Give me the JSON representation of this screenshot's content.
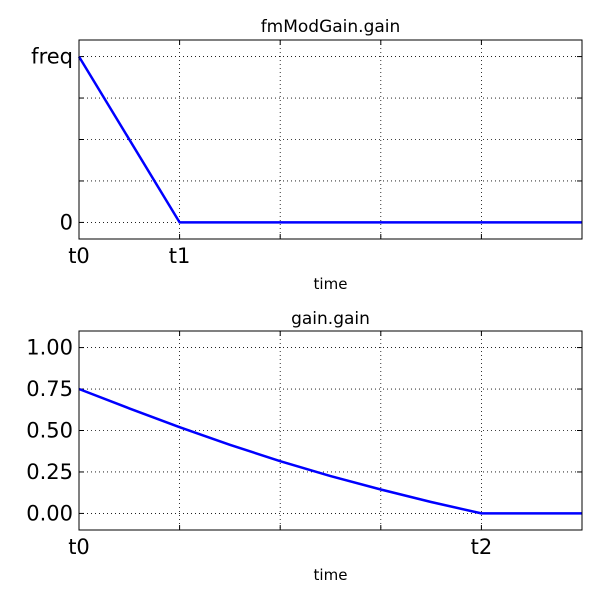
{
  "chart_data": [
    {
      "type": "line",
      "title": "fmModGain.gain",
      "xlabel": "time",
      "ylabel": "",
      "grid": true,
      "xlim": [
        0,
        5
      ],
      "ylim": [
        -0.1,
        1.1
      ],
      "x_ticks": [
        {
          "value": 0,
          "label": "t0"
        },
        {
          "value": 1,
          "label": "t1"
        },
        {
          "value": 2,
          "label": ""
        },
        {
          "value": 3,
          "label": ""
        },
        {
          "value": 4,
          "label": ""
        },
        {
          "value": 5,
          "label": ""
        }
      ],
      "y_ticks": [
        {
          "value": 0,
          "label": "0"
        },
        {
          "value": 0.25,
          "label": ""
        },
        {
          "value": 0.5,
          "label": ""
        },
        {
          "value": 0.75,
          "label": ""
        },
        {
          "value": 1,
          "label": "freq"
        }
      ],
      "series": [
        {
          "color": "#0000ff",
          "x": [
            0,
            1,
            5
          ],
          "y": [
            1,
            0,
            0
          ]
        }
      ]
    },
    {
      "type": "line",
      "title": "gain.gain",
      "xlabel": "time",
      "ylabel": "",
      "grid": true,
      "xlim": [
        0,
        5
      ],
      "ylim": [
        -0.1,
        1.1
      ],
      "x_ticks": [
        {
          "value": 0,
          "label": "t0"
        },
        {
          "value": 1,
          "label": ""
        },
        {
          "value": 2,
          "label": ""
        },
        {
          "value": 3,
          "label": ""
        },
        {
          "value": 4,
          "label": "t2"
        },
        {
          "value": 5,
          "label": ""
        }
      ],
      "y_ticks": [
        {
          "value": 0,
          "label": "0.00"
        },
        {
          "value": 0.25,
          "label": "0.25"
        },
        {
          "value": 0.5,
          "label": "0.50"
        },
        {
          "value": 0.75,
          "label": "0.75"
        },
        {
          "value": 1,
          "label": "1.00"
        }
      ],
      "series": [
        {
          "color": "#0000ff",
          "x": [
            0,
            0.5,
            1,
            1.5,
            2,
            2.5,
            3,
            3.5,
            4,
            5
          ],
          "y": [
            0.75,
            0.633,
            0.52,
            0.414,
            0.315,
            0.225,
            0.144,
            0.069,
            0,
            0
          ]
        }
      ]
    }
  ]
}
